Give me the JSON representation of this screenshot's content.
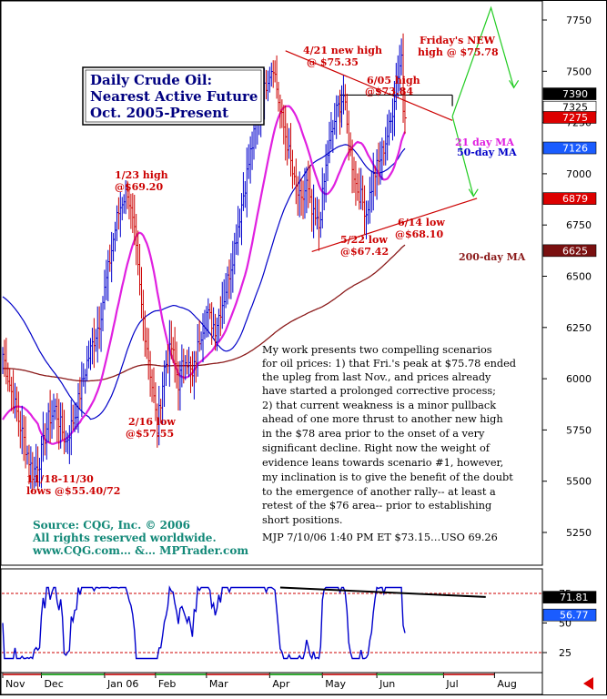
{
  "chart_data": [
    {
      "type": "candlestick",
      "title_lines": [
        "Daily Crude Oil:",
        "Nearest Active Future",
        "Oct. 2005-Present"
      ],
      "ylim": [
        5050,
        7850
      ],
      "y_ticks": [
        5250,
        5500,
        5750,
        6000,
        6250,
        6500,
        6750,
        7000,
        7250,
        7500,
        7750
      ],
      "x_labels": [
        "Nov",
        "Dec",
        "Jan 06",
        "Feb",
        "Mar",
        "Apr",
        "May",
        "Jun",
        "Jul",
        "Aug"
      ],
      "price_tags": [
        {
          "text": "7390",
          "value": 7390,
          "style": "black"
        },
        {
          "text": "7325",
          "value": 7325,
          "style": "white"
        },
        {
          "text": "7275",
          "value": 7275,
          "style": "red"
        },
        {
          "text": "7126",
          "value": 7126,
          "style": "blue"
        },
        {
          "text": "6879",
          "value": 6879,
          "style": "red"
        },
        {
          "text": "6625",
          "value": 6625,
          "style": "maroon"
        }
      ],
      "annotations": [
        {
          "lines": [
            "4/21 new high",
            "@ $75.35"
          ]
        },
        {
          "lines": [
            "6/05 high",
            "@$73.84"
          ]
        },
        {
          "lines": [
            "Friday's NEW",
            "high @ $75.78"
          ]
        },
        {
          "lines": [
            "1/23 high",
            "@$69.20"
          ]
        },
        {
          "lines": [
            "5/22 low",
            "@$67.42"
          ]
        },
        {
          "lines": [
            "6/14 low",
            "@$68.10"
          ]
        },
        {
          "lines": [
            "2/16 low",
            "@$57.55"
          ]
        },
        {
          "lines": [
            "11/18-11/30",
            "lows @$55.40/72"
          ]
        }
      ],
      "ma_labels": {
        "ma21": "21 day MA",
        "ma50": "50-day MA",
        "ma200": "200-day MA"
      },
      "colors": {
        "ma21": "#e020e0",
        "ma50": "#0000c8",
        "ma200": "#8b1a1a",
        "bars": "#0000cc",
        "down_bars": "#cc0000",
        "annotation": "#cc0000",
        "projection": "#22cc22"
      },
      "key_points": [
        {
          "date": "11/18",
          "value": 5540
        },
        {
          "date": "1/23",
          "value": 6920
        },
        {
          "date": "2/16",
          "value": 5755
        },
        {
          "date": "4/21",
          "value": 7535
        },
        {
          "date": "5/22",
          "value": 6742
        },
        {
          "date": "6/05",
          "value": 7384
        },
        {
          "date": "6/14",
          "value": 6810
        },
        {
          "date": "7/07",
          "value": 7578
        }
      ]
    },
    {
      "type": "line",
      "name": "oscillator",
      "ylim": [
        15,
        85
      ],
      "y_ticks": [
        25,
        50,
        75
      ],
      "price_tags": [
        {
          "text": "71.81",
          "value": 71.81,
          "style": "black"
        },
        {
          "text": "56.77",
          "value": 56.77,
          "style": "blue"
        }
      ],
      "colors": {
        "line": "#0000cc",
        "levels": "#cc0000"
      }
    }
  ],
  "commentary": [
    "My work presents two compelling scenarios",
    "for oil prices: 1) that Fri.'s peak at $75.78 ended",
    "the upleg from last Nov., and prices already",
    "have started a prolonged corrective process;",
    "2) that current weakness is a minor pullback",
    "ahead of one more thrust to another new high",
    "in the $78 area prior to the onset of a very",
    "significant decline. Right now the weight of",
    "evidence leans towards scenario #1, however,",
    "my inclination is to give the benefit of the doubt",
    "to the emergence of another rally-- at least a",
    "retest of the $76 area-- prior to establishing",
    "short positions."
  ],
  "signature": "MJP  7/10/06 1:40 PM ET  $73.15…USO 69.26",
  "source": [
    "Source: CQG, Inc. © 2006",
    "All rights reserved worldwide.",
    "www.CQG.com… &… MPTrader.com"
  ]
}
